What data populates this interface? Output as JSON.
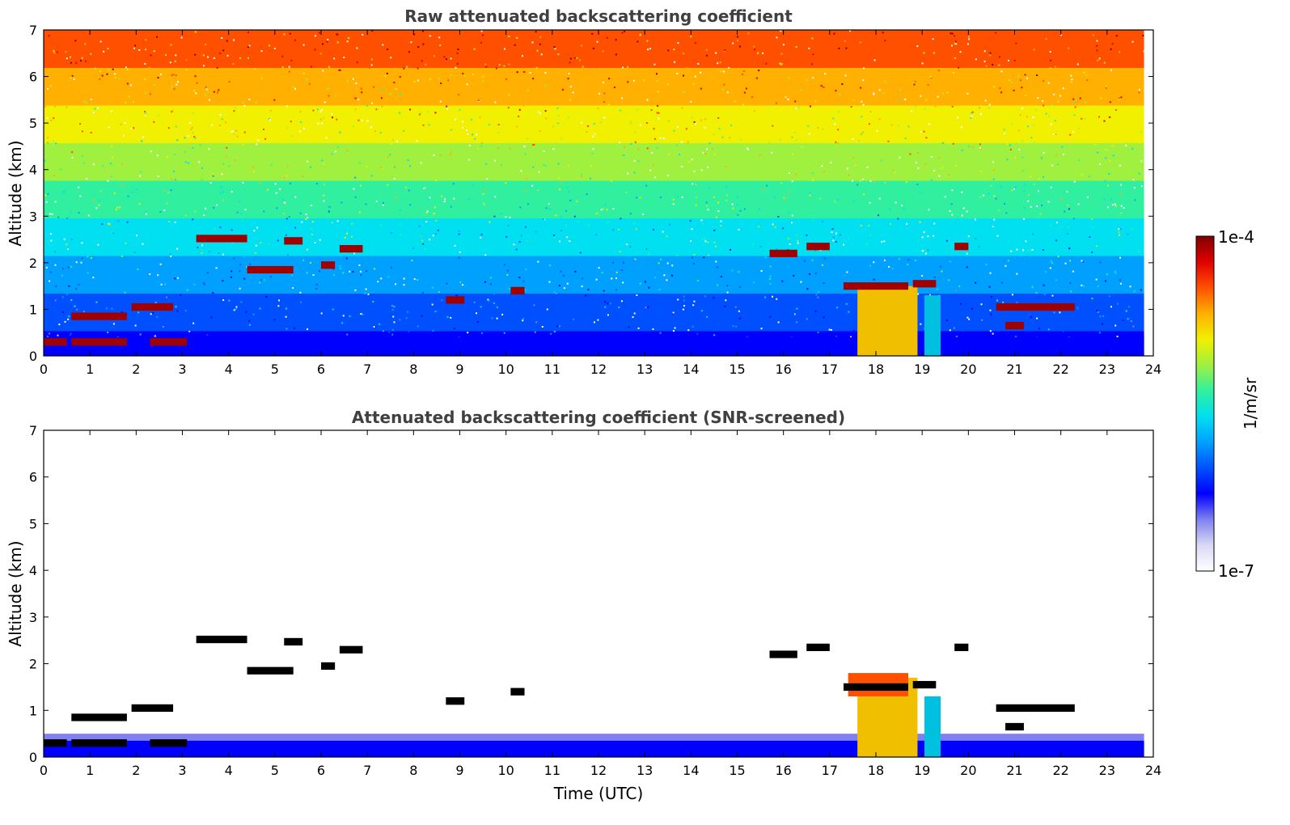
{
  "colors": {
    "colormap": [
      "#ffffff",
      "#d9d9f5",
      "#8080f0",
      "#0000ff",
      "#0050ff",
      "#00a0ff",
      "#00e0f0",
      "#30f0a0",
      "#a0f040",
      "#f0f000",
      "#ffb000",
      "#ff5000",
      "#e00000",
      "#800000"
    ],
    "axis": "#000000",
    "title_text": "#404040"
  },
  "chart_data": [
    {
      "type": "heatmap",
      "panel": "top",
      "title": "Raw attenuated backscattering coefficient",
      "xlabel": "",
      "ylabel": "Altitude (km)",
      "xlim": [
        0,
        24
      ],
      "ylim": [
        0,
        7
      ],
      "xticks": [
        0,
        1,
        2,
        3,
        4,
        5,
        6,
        7,
        8,
        9,
        10,
        11,
        12,
        13,
        14,
        15,
        16,
        17,
        18,
        19,
        20,
        21,
        22,
        23,
        24
      ],
      "yticks": [
        0,
        1,
        2,
        3,
        4,
        5,
        6,
        7
      ],
      "data_end_hour": 23.8,
      "colorscale": "log",
      "clouds": [
        {
          "t0": 0.0,
          "t1": 0.5,
          "alt": 0.3,
          "value": "1e-4"
        },
        {
          "t0": 0.6,
          "t1": 1.8,
          "alt": 0.3,
          "value": "1e-4"
        },
        {
          "t0": 2.3,
          "t1": 3.1,
          "alt": 0.3,
          "value": "1e-4"
        },
        {
          "t0": 0.6,
          "t1": 1.8,
          "alt": 0.85,
          "value": "1e-4"
        },
        {
          "t0": 1.9,
          "t1": 2.8,
          "alt": 1.05,
          "value": "1e-4"
        },
        {
          "t0": 3.3,
          "t1": 4.4,
          "alt": 2.52,
          "value": "1e-4"
        },
        {
          "t0": 4.4,
          "t1": 5.4,
          "alt": 1.85,
          "value": "1e-4"
        },
        {
          "t0": 5.2,
          "t1": 5.6,
          "alt": 2.47,
          "value": "1e-4"
        },
        {
          "t0": 6.0,
          "t1": 6.3,
          "alt": 1.95,
          "value": "1e-4"
        },
        {
          "t0": 6.4,
          "t1": 6.9,
          "alt": 2.3,
          "value": "1e-4"
        },
        {
          "t0": 8.7,
          "t1": 9.1,
          "alt": 1.2,
          "value": "1e-4"
        },
        {
          "t0": 10.1,
          "t1": 10.4,
          "alt": 1.4,
          "value": "1e-4"
        },
        {
          "t0": 15.7,
          "t1": 16.3,
          "alt": 2.2,
          "value": "1e-4"
        },
        {
          "t0": 16.5,
          "t1": 17.0,
          "alt": 2.35,
          "value": "1e-4"
        },
        {
          "t0": 17.3,
          "t1": 18.7,
          "alt": 1.5,
          "value": "1e-4"
        },
        {
          "t0": 18.8,
          "t1": 19.3,
          "alt": 1.55,
          "value": "1e-4"
        },
        {
          "t0": 19.7,
          "t1": 20.0,
          "alt": 2.35,
          "value": "1e-4"
        },
        {
          "t0": 20.6,
          "t1": 22.3,
          "alt": 1.05,
          "value": "1e-4"
        },
        {
          "t0": 20.8,
          "t1": 21.2,
          "alt": 0.65,
          "value": "1e-4"
        }
      ]
    },
    {
      "type": "heatmap",
      "panel": "bottom",
      "title": "Attenuated backscattering coefficient (SNR-screened)",
      "xlabel": "Time (UTC)",
      "ylabel": "Altitude (km)",
      "xlim": [
        0,
        24
      ],
      "ylim": [
        0,
        7
      ],
      "xticks": [
        0,
        1,
        2,
        3,
        4,
        5,
        6,
        7,
        8,
        9,
        10,
        11,
        12,
        13,
        14,
        15,
        16,
        17,
        18,
        19,
        20,
        21,
        22,
        23,
        24
      ],
      "yticks": [
        0,
        1,
        2,
        3,
        4,
        5,
        6,
        7
      ],
      "data_end_hour": 23.8,
      "colorscale": "log"
    }
  ],
  "colorbar": {
    "label": "1/m/sr",
    "max_label": "1e-4",
    "min_label": "1e-7",
    "range": [
      1e-07,
      0.0001
    ]
  }
}
